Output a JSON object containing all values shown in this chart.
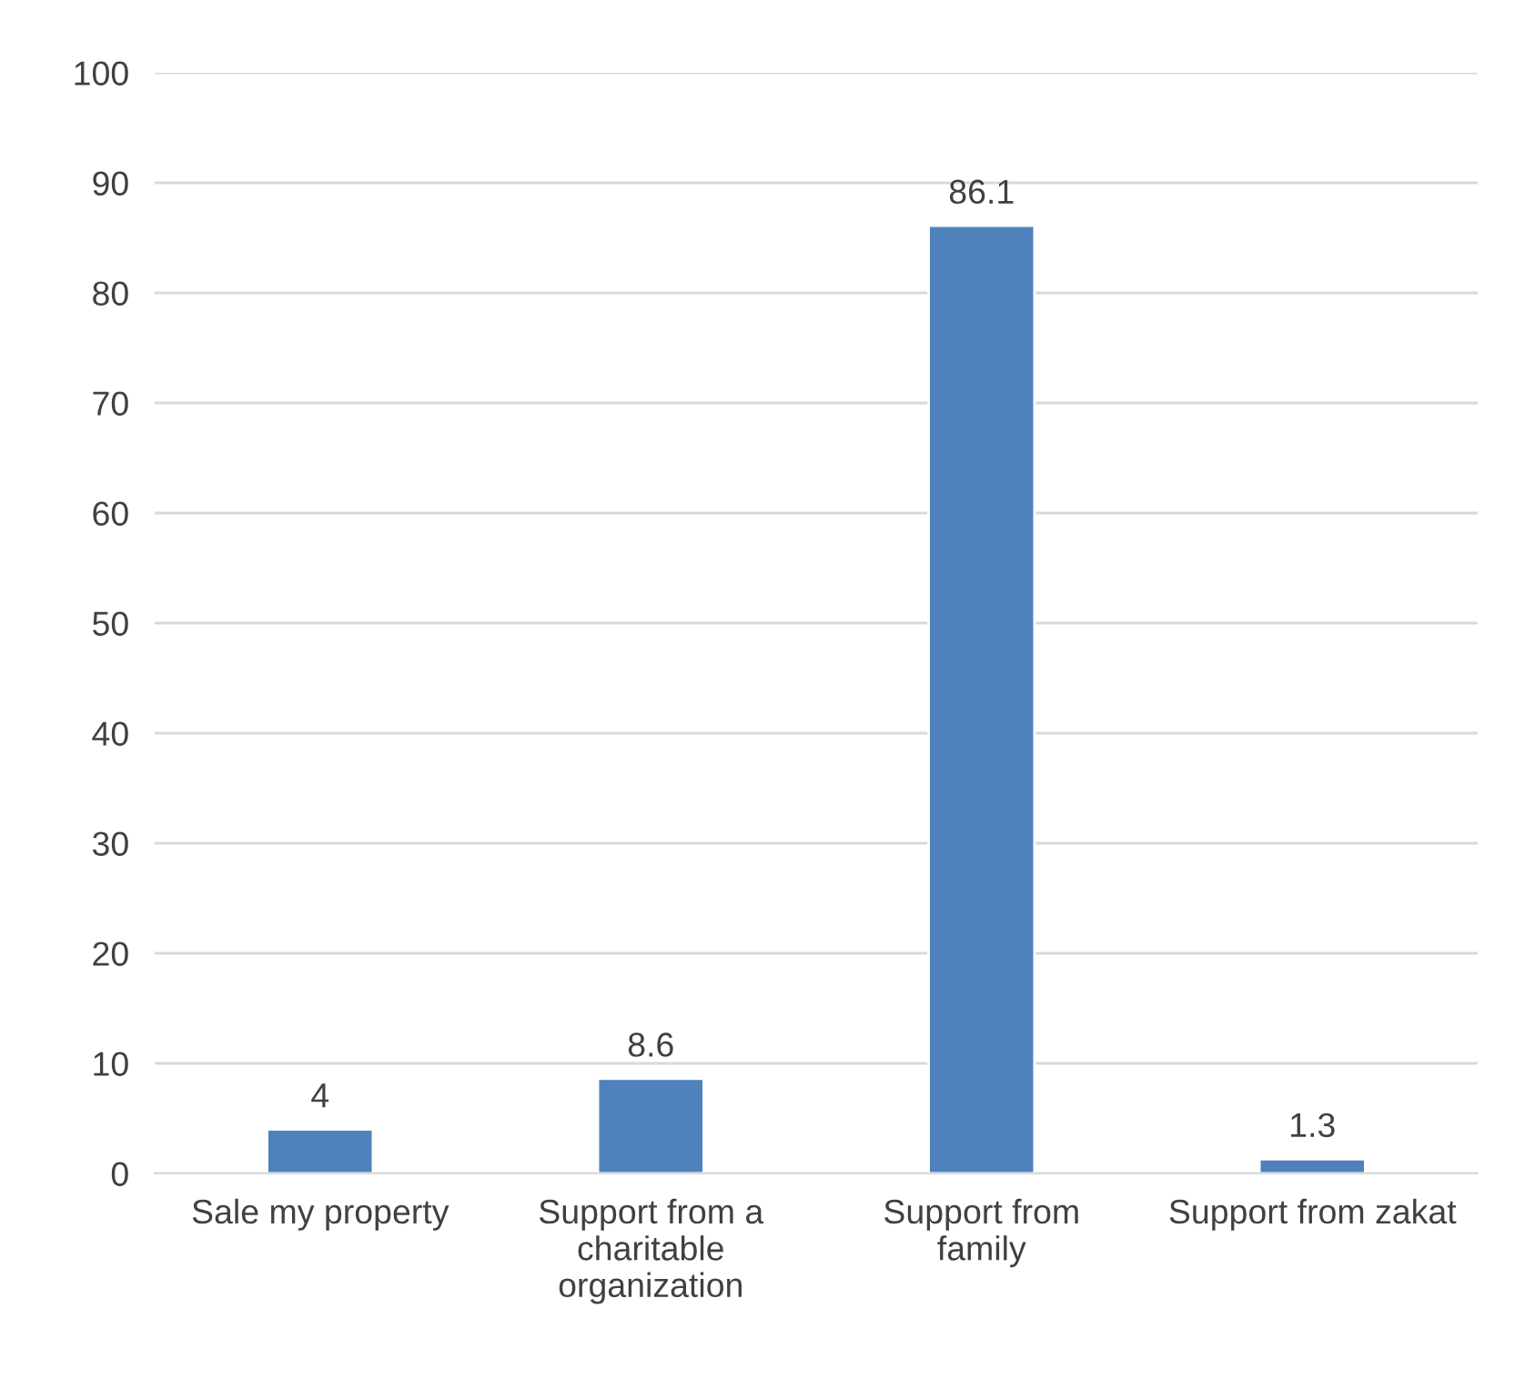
{
  "chart_data": {
    "type": "bar",
    "categories": [
      "Sale my property",
      "Support from a charitable organization",
      "Support from family",
      "Support from zakat"
    ],
    "values": [
      4,
      8.6,
      86.1,
      1.3
    ],
    "color": "#4f81bd",
    "ylim": [
      0,
      100
    ],
    "yticks": [
      0,
      10,
      20,
      30,
      40,
      50,
      60,
      70,
      80,
      90,
      100
    ],
    "grid": "y",
    "data_labels": true
  }
}
